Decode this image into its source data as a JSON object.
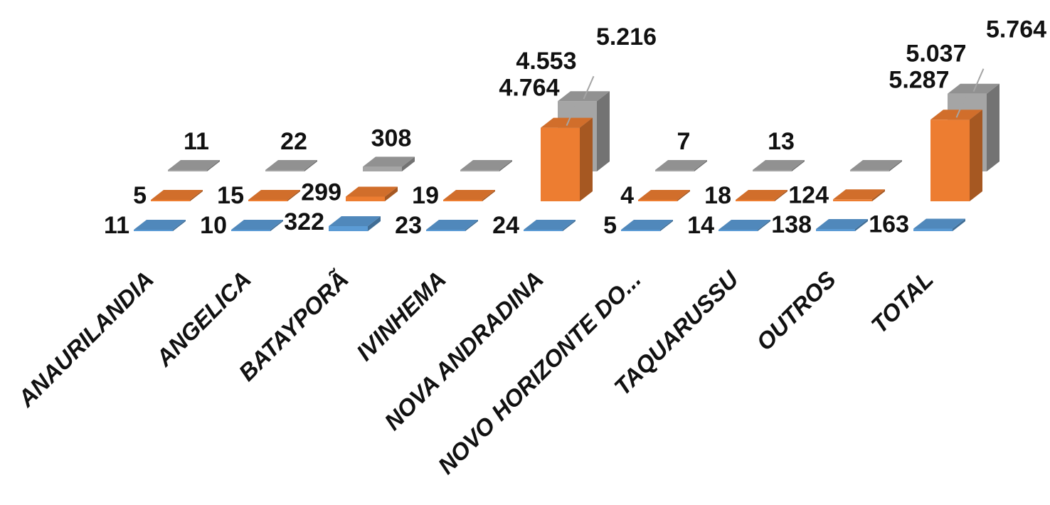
{
  "chart_data": {
    "type": "bar",
    "categories": [
      "ANAURILANDIA",
      "ANGELICA",
      "BATAYPORÃ",
      "IVINHEMA",
      "NOVA ANDRADINA",
      "NOVO HORIZONTE DO...",
      "TAQUARUSSU",
      "OUTROS",
      "TOTAL"
    ],
    "series": [
      {
        "color": "#5b9bd5",
        "values": [
          11,
          10,
          322,
          23,
          24,
          5,
          14,
          138,
          163
        ],
        "labels": [
          "11",
          "10",
          "322",
          "23",
          "24",
          "5",
          "14",
          "138",
          "163"
        ]
      },
      {
        "color": "#ed7d31",
        "values": [
          5,
          15,
          299,
          19,
          4764,
          4,
          18,
          124,
          5287
        ],
        "labels": [
          "5",
          "15",
          "299",
          "19",
          "4.764",
          "4",
          "18",
          "124",
          "5.287"
        ]
      },
      {
        "color": "#a5a5a5",
        "values": [
          11,
          22,
          308,
          7,
          4553,
          7,
          13,
          13,
          5037
        ],
        "labels": [
          "11",
          "22",
          "308",
          "",
          "4.553",
          "7",
          "13",
          "",
          "5.037"
        ]
      }
    ],
    "extra_labels": [
      {
        "category": "NOVA ANDRADINA",
        "text": "5.216"
      },
      {
        "category": "TOTAL",
        "text": "5.764"
      }
    ],
    "chart_style": "3d-clustered-column",
    "grid": false,
    "legend": "none"
  }
}
